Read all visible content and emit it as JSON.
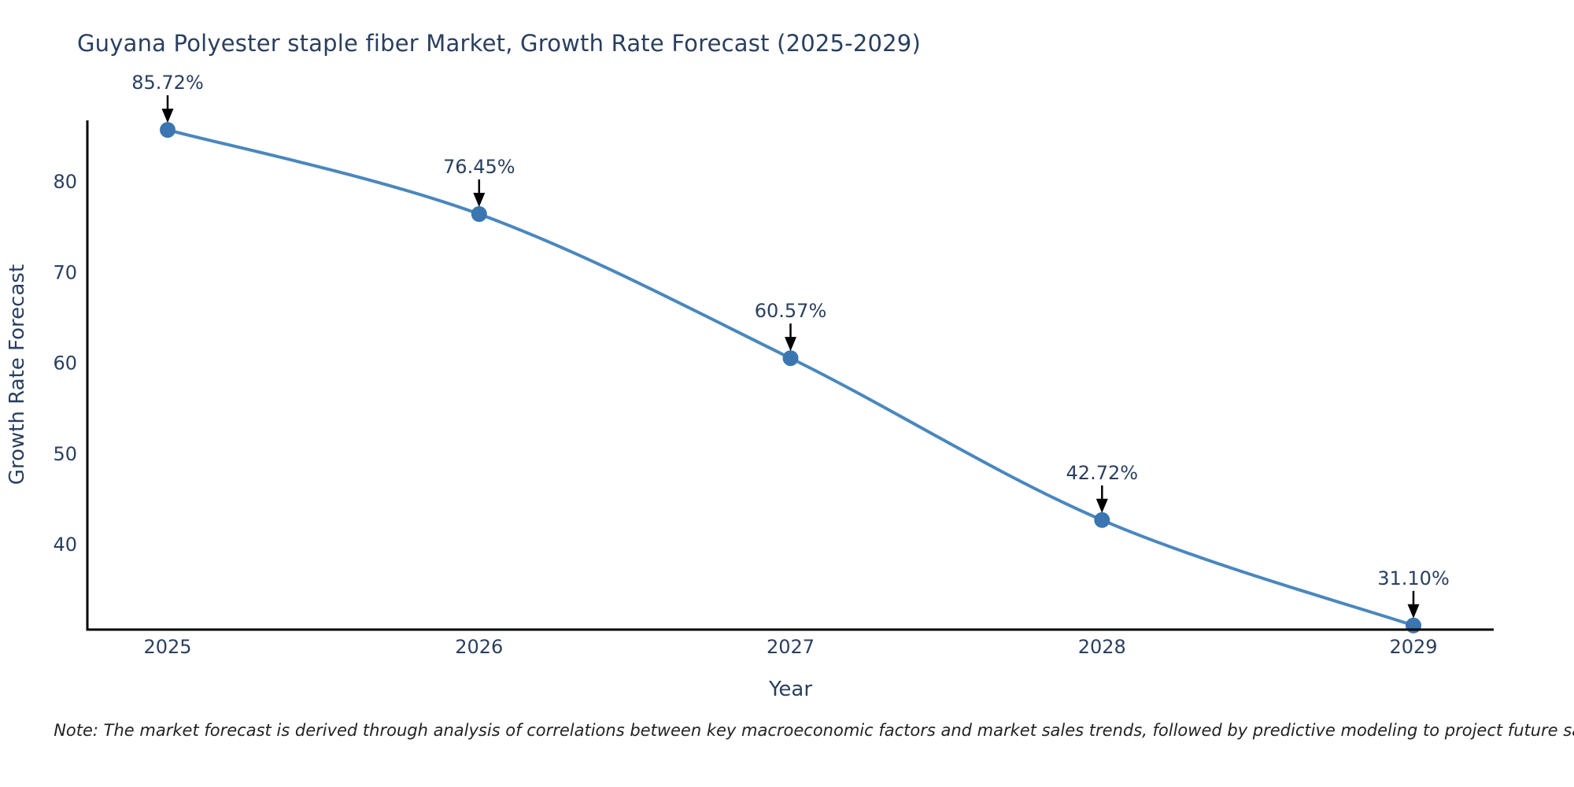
{
  "chart_data": {
    "type": "line",
    "title": "Guyana Polyester staple fiber Market, Growth Rate Forecast (2025-2029)",
    "xlabel": "Year",
    "ylabel": "Growth Rate Forecast",
    "x": [
      2025,
      2026,
      2027,
      2028,
      2029
    ],
    "series": [
      {
        "name": "Growth Rate Forecast",
        "values": [
          85.72,
          76.45,
          60.57,
          42.72,
          31.1
        ]
      }
    ],
    "point_labels": [
      "85.72%",
      "76.45%",
      "60.57%",
      "42.72%",
      "31.10%"
    ],
    "yticks": [
      40,
      50,
      60,
      70,
      80
    ],
    "xticks": [
      "2025",
      "2026",
      "2027",
      "2028",
      "2029"
    ],
    "xlim": [
      2024.74,
      2029.26
    ],
    "ylim": [
      30.65,
      86.77
    ],
    "grid": false,
    "legend": false,
    "line_shape": "spline",
    "annotation_style": "value label with downward black arrow to each marker",
    "colors": {
      "line": "#4a87bd",
      "marker": "#3c76b0",
      "axis": "#000000",
      "text": "#2a3f5f",
      "annotation_arrow": "#000000",
      "background": "#ffffff"
    }
  },
  "note": "Note: The market forecast is derived through analysis of correlations between key macroeconomic factors and market sales trends, followed by predictive modeling to project future sales"
}
